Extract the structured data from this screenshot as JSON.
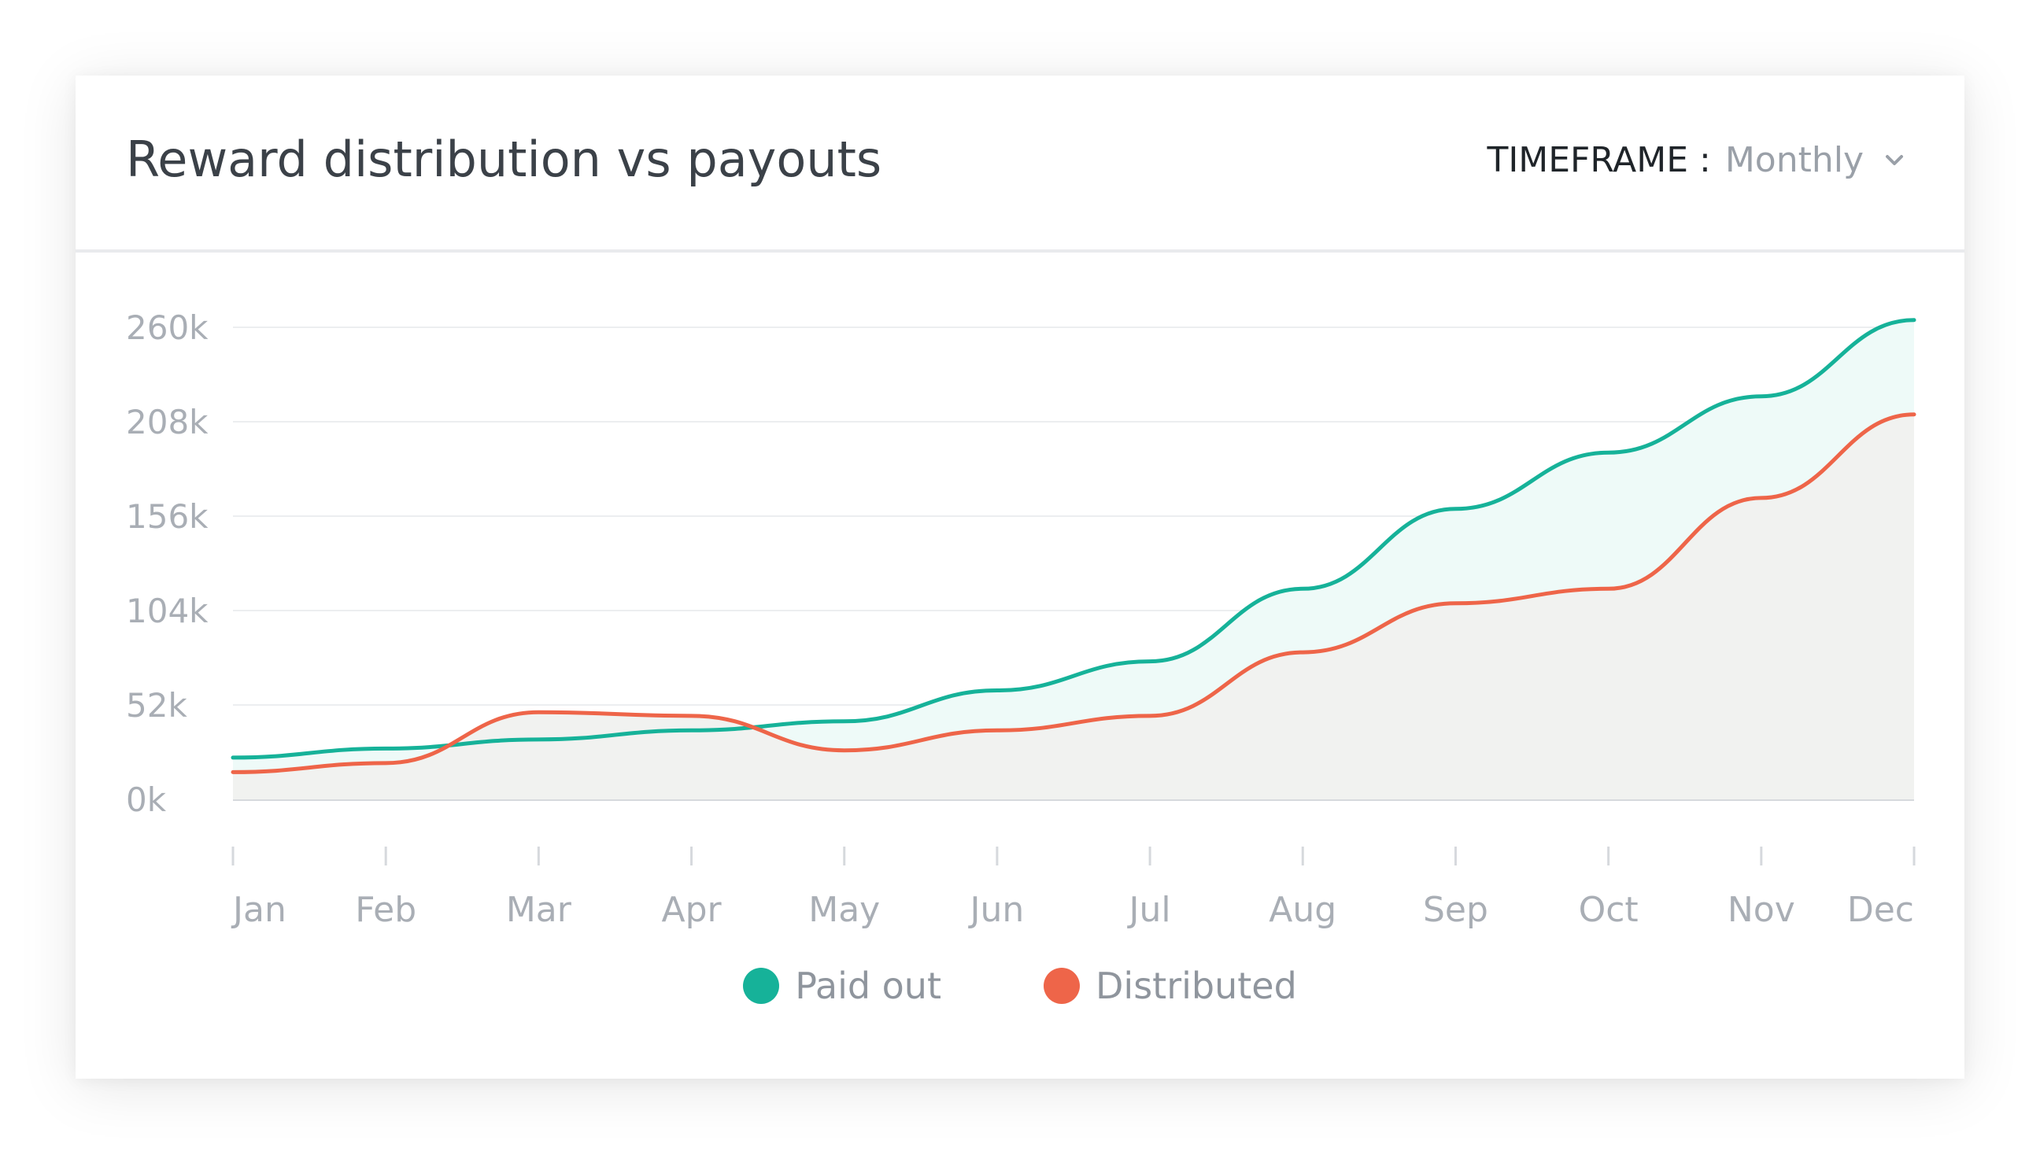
{
  "card": {
    "title": "Reward distribution vs payouts",
    "timeframe_label": "TIMEFRAME :",
    "timeframe_value": "Monthly",
    "chevron_icon": "chevron-down-icon"
  },
  "colors": {
    "paid_out": "#16b299",
    "distributed": "#ee6549",
    "paid_fill": "#eefaf8",
    "distributed_fill": "#f1f2f0",
    "grid": "#eceef0",
    "axis": "#d6d9dd",
    "tick_text": "#a9aeb5"
  },
  "chart_data": {
    "type": "area",
    "title": "Reward distribution vs payouts",
    "xlabel": "",
    "ylabel": "",
    "categories": [
      "Jan",
      "Feb",
      "Mar",
      "Apr",
      "May",
      "Jun",
      "Jul",
      "Aug",
      "Sep",
      "Oct",
      "Nov",
      "Dec"
    ],
    "y_ticks": [
      0,
      52000,
      104000,
      156000,
      208000,
      260000
    ],
    "y_tick_labels": [
      "0k",
      "52k",
      "104k",
      "156k",
      "208k",
      "260k"
    ],
    "ylim": [
      0,
      260000
    ],
    "grid": true,
    "legend_position": "bottom-center",
    "series": [
      {
        "name": "Paid out",
        "color": "#16b299",
        "values": [
          23000,
          28000,
          33000,
          38000,
          43000,
          60000,
          76000,
          116000,
          160000,
          191000,
          222000,
          264000
        ]
      },
      {
        "name": "Distributed",
        "color": "#ee6549",
        "values": [
          15000,
          20000,
          48000,
          46000,
          27000,
          38000,
          46000,
          81000,
          108000,
          116000,
          166000,
          212000
        ]
      }
    ]
  }
}
